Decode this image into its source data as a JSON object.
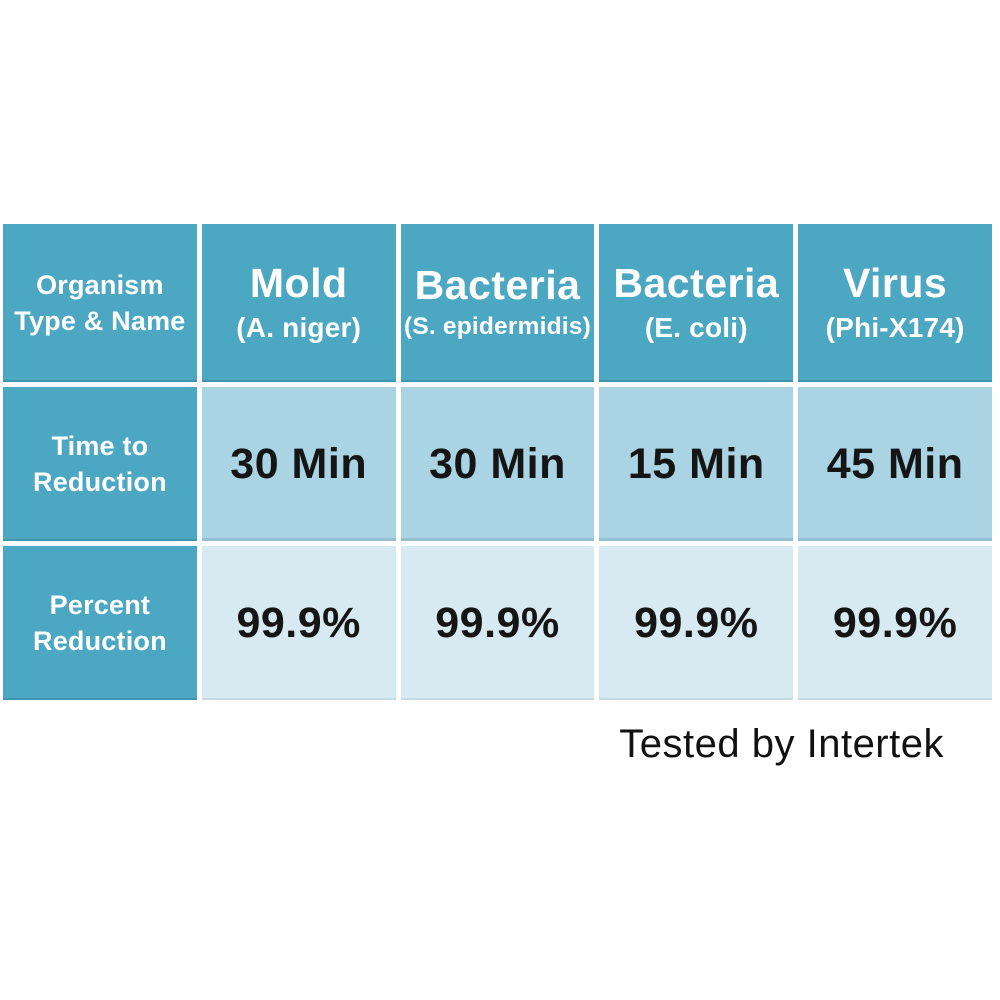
{
  "table": {
    "corner_header": "Organism\nType & Name",
    "row_headers": {
      "time": "Time to\nReduction",
      "percent": "Percent\nReduction"
    },
    "columns": [
      {
        "type": "Mold",
        "name": "(A. niger)",
        "time": "30 Min",
        "percent": "99.9%"
      },
      {
        "type": "Bacteria",
        "name": "(S. epidermidis)",
        "time": "30 Min",
        "percent": "99.9%"
      },
      {
        "type": "Bacteria",
        "name": "(E. coli)",
        "time": "15 Min",
        "percent": "99.9%"
      },
      {
        "type": "Virus",
        "name": "(Phi-X174)",
        "time": "45 Min",
        "percent": "99.9%"
      }
    ]
  },
  "footnote": {
    "text": "Tested by Intertek"
  },
  "colors": {
    "header_teal": "#4BA7C2",
    "time_row_bg": "#AAD4E3",
    "percent_row_bg": "#D7E9F1",
    "text_on_teal": "#FFFFFF",
    "text_dark": "#151515",
    "background": "#FFFFFF"
  },
  "chart_data": {
    "type": "table",
    "title": "",
    "columns": [
      "Organism Type & Name",
      "Mold (A. niger)",
      "Bacteria (S. epidermidis)",
      "Bacteria (E. coli)",
      "Virus (Phi-X174)"
    ],
    "rows": [
      [
        "Time to Reduction",
        "30 Min",
        "30 Min",
        "15 Min",
        "45 Min"
      ],
      [
        "Percent Reduction",
        "99.9%",
        "99.9%",
        "99.9%",
        "99.9%"
      ]
    ],
    "annotation": "Tested by Intertek",
    "layout": {
      "grid": "white 5px gaps between cells",
      "annotation_position": "bottom-right"
    }
  }
}
